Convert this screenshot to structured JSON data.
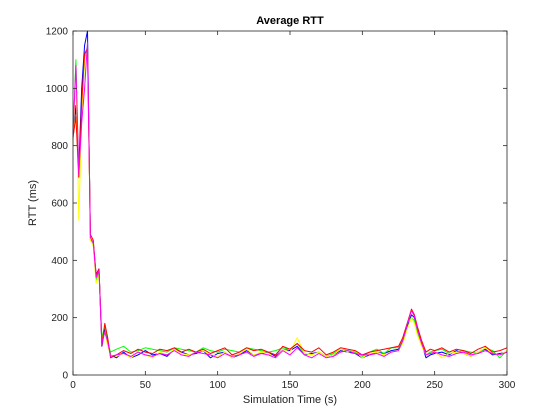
{
  "chart_data": {
    "type": "line",
    "title": "Average RTT",
    "xlabel": "Simulation Time (s)",
    "ylabel": "RTT (ms)",
    "xlim": [
      0,
      300
    ],
    "ylim": [
      0,
      1200
    ],
    "xticks": [
      0,
      50,
      100,
      150,
      200,
      250,
      300
    ],
    "yticks": [
      0,
      200,
      400,
      600,
      800,
      1000,
      1200
    ],
    "grid": false,
    "legend": "none",
    "series": [
      {
        "color": "#0000ff",
        "x": [
          0,
          2,
          4,
          6,
          8,
          10,
          12,
          14,
          16,
          18,
          20,
          22,
          24,
          26,
          30,
          35,
          40,
          45,
          50,
          55,
          60,
          65,
          70,
          75,
          80,
          85,
          90,
          95,
          100,
          105,
          110,
          115,
          120,
          125,
          130,
          135,
          140,
          145,
          150,
          155,
          160,
          165,
          170,
          175,
          180,
          185,
          190,
          195,
          200,
          205,
          210,
          215,
          220,
          225,
          228,
          231,
          234,
          236,
          238,
          241,
          244,
          247,
          250,
          255,
          260,
          265,
          270,
          275,
          280,
          285,
          290,
          295,
          300
        ],
        "y": [
          820,
          940,
          720,
          1000,
          1150,
          1200,
          470,
          460,
          350,
          370,
          100,
          160,
          120,
          70,
          60,
          80,
          60,
          70,
          85,
          70,
          75,
          65,
          90,
          80,
          70,
          75,
          85,
          60,
          75,
          80,
          60,
          70,
          85,
          70,
          75,
          80,
          65,
          90,
          85,
          100,
          70,
          75,
          80,
          65,
          70,
          85,
          80,
          75,
          60,
          70,
          80,
          75,
          85,
          90,
          120,
          170,
          210,
          200,
          160,
          110,
          60,
          70,
          75,
          80,
          70,
          85,
          75,
          65,
          80,
          90,
          70,
          75,
          80
        ]
      },
      {
        "color": "#00ff00",
        "x": [
          0,
          2,
          4,
          6,
          8,
          10,
          12,
          14,
          16,
          18,
          20,
          22,
          24,
          26,
          30,
          35,
          40,
          45,
          50,
          55,
          60,
          65,
          70,
          75,
          80,
          85,
          90,
          95,
          100,
          105,
          110,
          115,
          120,
          125,
          130,
          135,
          140,
          145,
          150,
          155,
          160,
          165,
          170,
          175,
          180,
          185,
          190,
          195,
          200,
          205,
          210,
          215,
          220,
          225,
          228,
          231,
          234,
          236,
          238,
          241,
          244,
          247,
          250,
          255,
          260,
          265,
          270,
          275,
          280,
          285,
          290,
          295,
          300
        ],
        "y": [
          830,
          1100,
          700,
          900,
          1100,
          1150,
          480,
          455,
          330,
          360,
          130,
          170,
          110,
          80,
          90,
          100,
          80,
          85,
          95,
          90,
          85,
          80,
          95,
          90,
          85,
          80,
          95,
          85,
          80,
          90,
          85,
          80,
          95,
          90,
          85,
          80,
          85,
          95,
          90,
          110,
          75,
          70,
          80,
          65,
          75,
          90,
          85,
          80,
          65,
          80,
          90,
          75,
          95,
          95,
          130,
          180,
          200,
          190,
          150,
          110,
          70,
          80,
          85,
          90,
          75,
          80,
          85,
          80,
          75,
          95,
          85,
          60,
          85
        ]
      },
      {
        "color": "#ffff00",
        "x": [
          0,
          2,
          4,
          6,
          8,
          10,
          12,
          14,
          16,
          18,
          20,
          22,
          24,
          26,
          30,
          35,
          40,
          45,
          50,
          55,
          60,
          65,
          70,
          75,
          80,
          85,
          90,
          95,
          100,
          105,
          110,
          115,
          120,
          125,
          130,
          135,
          140,
          145,
          150,
          155,
          160,
          165,
          170,
          175,
          180,
          185,
          190,
          195,
          200,
          205,
          210,
          215,
          220,
          225,
          228,
          231,
          234,
          236,
          238,
          241,
          244,
          247,
          250,
          255,
          260,
          265,
          270,
          275,
          280,
          285,
          290,
          295,
          300
        ],
        "y": [
          800,
          1050,
          540,
          900,
          1100,
          1130,
          470,
          450,
          320,
          350,
          120,
          150,
          100,
          70,
          65,
          75,
          60,
          80,
          70,
          60,
          80,
          70,
          90,
          75,
          70,
          80,
          85,
          70,
          65,
          80,
          60,
          75,
          90,
          70,
          80,
          75,
          60,
          90,
          80,
          130,
          75,
          70,
          80,
          65,
          70,
          90,
          80,
          85,
          60,
          75,
          80,
          70,
          80,
          85,
          110,
          160,
          200,
          180,
          140,
          100,
          70,
          75,
          80,
          60,
          75,
          80,
          75,
          65,
          80,
          95,
          75,
          70,
          85
        ]
      },
      {
        "color": "#ff0000",
        "x": [
          0,
          2,
          4,
          6,
          8,
          10,
          12,
          14,
          16,
          18,
          20,
          22,
          24,
          26,
          30,
          35,
          40,
          45,
          50,
          55,
          60,
          65,
          70,
          75,
          80,
          85,
          90,
          95,
          100,
          105,
          110,
          115,
          120,
          125,
          130,
          135,
          140,
          145,
          150,
          155,
          160,
          165,
          170,
          175,
          180,
          185,
          190,
          195,
          200,
          205,
          210,
          215,
          220,
          225,
          228,
          231,
          234,
          236,
          238,
          241,
          244,
          247,
          250,
          255,
          260,
          265,
          270,
          275,
          280,
          285,
          290,
          295,
          300
        ],
        "y": [
          830,
          900,
          690,
          950,
          1120,
          1140,
          490,
          470,
          350,
          370,
          105,
          180,
          130,
          60,
          70,
          85,
          75,
          90,
          80,
          75,
          90,
          85,
          95,
          80,
          90,
          80,
          90,
          75,
          85,
          95,
          70,
          80,
          95,
          85,
          90,
          80,
          70,
          100,
          90,
          110,
          85,
          80,
          95,
          70,
          80,
          95,
          90,
          85,
          70,
          80,
          85,
          90,
          95,
          100,
          130,
          180,
          230,
          210,
          170,
          120,
          80,
          90,
          85,
          95,
          80,
          90,
          85,
          75,
          90,
          100,
          80,
          85,
          95
        ]
      },
      {
        "color": "#ff00ff",
        "x": [
          0,
          2,
          4,
          6,
          8,
          10,
          12,
          14,
          16,
          18,
          20,
          22,
          24,
          26,
          30,
          35,
          40,
          45,
          50,
          55,
          60,
          65,
          70,
          75,
          80,
          85,
          90,
          95,
          100,
          105,
          110,
          115,
          120,
          125,
          130,
          135,
          140,
          145,
          150,
          155,
          160,
          165,
          170,
          175,
          180,
          185,
          190,
          195,
          200,
          205,
          210,
          215,
          220,
          225,
          228,
          231,
          234,
          236,
          238,
          241,
          244,
          247,
          250,
          255,
          260,
          265,
          270,
          275,
          280,
          285,
          290,
          295,
          300
        ],
        "y": [
          840,
          1080,
          700,
          880,
          1000,
          1160,
          480,
          460,
          340,
          365,
          110,
          150,
          115,
          65,
          70,
          75,
          65,
          80,
          70,
          65,
          75,
          70,
          85,
          70,
          65,
          80,
          75,
          70,
          60,
          75,
          65,
          70,
          80,
          65,
          75,
          70,
          60,
          85,
          70,
          95,
          70,
          60,
          75,
          60,
          65,
          80,
          85,
          75,
          70,
          70,
          75,
          65,
          80,
          85,
          120,
          175,
          225,
          205,
          160,
          110,
          70,
          75,
          80,
          70,
          65,
          75,
          80,
          70,
          75,
          85,
          75,
          70,
          80
        ]
      }
    ]
  }
}
